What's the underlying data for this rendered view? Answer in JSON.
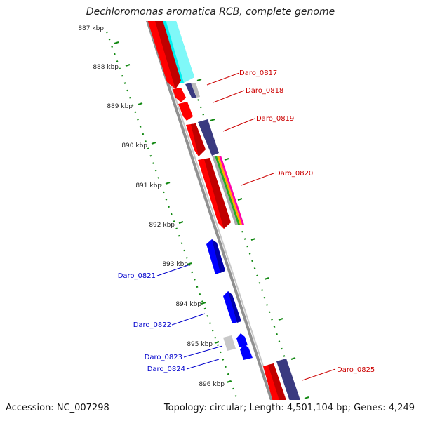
{
  "title": "Dechloromonas aromatica RCB, complete genome",
  "footer": {
    "accession": "Accession: NC_007298",
    "topology": "Topology: circular; Length: 4,501,104 bp; Genes: 4,249"
  },
  "ticks": [
    "887 kbp",
    "888 kbp",
    "889 kbp",
    "890 kbp",
    "891 kbp",
    "892 kbp",
    "893 kbp",
    "894 kbp",
    "895 kbp",
    "896 kbp"
  ],
  "genes": {
    "right": [
      "Daro_0817",
      "Daro_0818",
      "Daro_0819",
      "Daro_0820",
      "Daro_0825"
    ],
    "left": [
      "Daro_0821",
      "Daro_0822",
      "Daro_0823",
      "Daro_0824"
    ]
  },
  "colors": {
    "gene_label_right": "#cc0000",
    "gene_label_left": "#0000cc",
    "gene_red": "#ff0000",
    "gene_blue": "#0000ff",
    "gene_navy": "#3a3a80",
    "gene_cyan": "#00f0f0",
    "gene_grey": "#c8c8c8",
    "backbone": "#888888",
    "tick": "#118811"
  }
}
